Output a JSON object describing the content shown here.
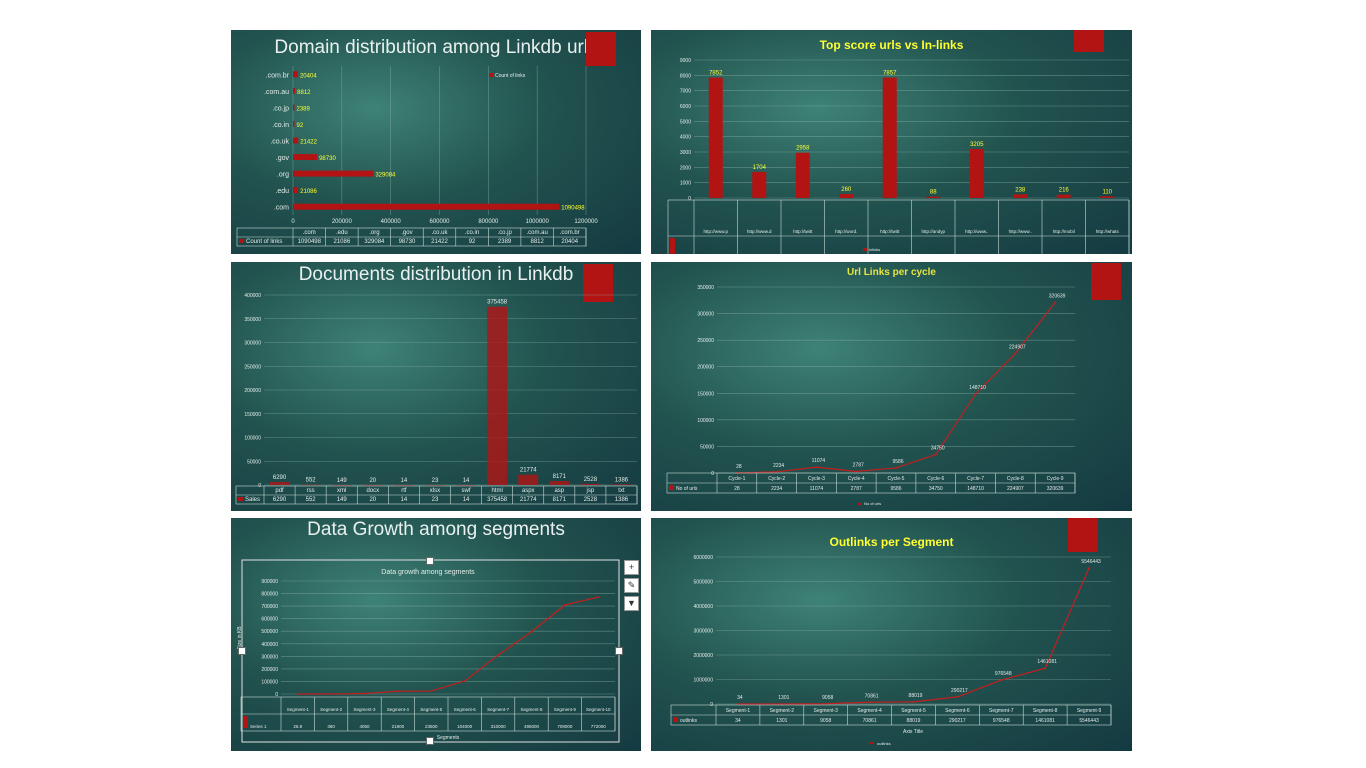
{
  "colors": {
    "bar": "#b21414",
    "label": "#ffff33",
    "text": "#e4ece9",
    "grid": "#8bb3ab"
  },
  "chart_data": [
    {
      "type": "bar",
      "orientation": "horizontal",
      "title": "Domain distribution among Linkdb urls",
      "categories": [
        ".com",
        ".edu",
        ".org",
        ".gov",
        ".co.uk",
        ".co.in",
        ".co.jp",
        ".com.au",
        ".com.br"
      ],
      "series": [
        {
          "name": "Count of links",
          "values": [
            1090498,
            21086,
            329084,
            98730,
            21422,
            92,
            2389,
            8812,
            20404
          ]
        }
      ],
      "data_labels": [
        "1090498",
        "21086",
        "329084",
        "98730",
        "21422",
        "92",
        "2389",
        "8812",
        "20404"
      ],
      "xlim": [
        0,
        1200000
      ],
      "ticks": [
        "0",
        "200000",
        "400000",
        "600000",
        "800000",
        "1000000",
        "1200000"
      ],
      "legend": "Count of links",
      "table_label": "Count of links"
    },
    {
      "type": "bar",
      "title": "Top score urls vs In-links",
      "categories": [
        "http://www.p...org/site/???",
        "http://www.dp...ress.org/",
        "http://twitter....com/",
        "http://word...press.org/",
        "http://twitter....com/share",
        "http://andyp...etting.com...om",
        "http://www....google.com...(lead)",
        "http://www....motiva&lo...op/",
        "http://mobile...theme.org/fo...heads/entries",
        "http://whats...stories.com/...(privacy)...html"
      ],
      "series": [
        {
          "name": "inlinks",
          "values": [
            7852,
            1704,
            2958,
            260,
            7857,
            88,
            3205,
            238,
            216,
            110
          ]
        }
      ],
      "data_labels": [
        "7852",
        "1704",
        "2958",
        "260",
        "7857",
        "88",
        "3205",
        "238",
        "216",
        "110"
      ],
      "ylim": [
        0,
        9000
      ],
      "ticks": [
        "0",
        "1000",
        "2000",
        "3000",
        "4000",
        "5000",
        "6000",
        "7000",
        "8000",
        "9000"
      ],
      "legend": "inlinks",
      "table_label": "inlinks"
    },
    {
      "type": "bar",
      "title": "Documents distribution in Linkdb",
      "categories": [
        "pdf",
        "rss",
        "xml",
        "docx",
        "rtf",
        "xlsx",
        "swf",
        "html",
        "aspx",
        "asp",
        "jsp",
        "txt"
      ],
      "series": [
        {
          "name": "Sales",
          "values": [
            6290,
            552,
            149,
            20,
            14,
            23,
            14,
            375458,
            21774,
            8171,
            2528,
            1386
          ]
        }
      ],
      "data_labels": [
        "6290",
        "552",
        "149",
        "20",
        "14",
        "23",
        "14",
        "375458",
        "21774",
        "8171",
        "2528",
        "1386"
      ],
      "ylim": [
        0,
        400000
      ],
      "ticks": [
        "0",
        "50000",
        "100000",
        "150000",
        "200000",
        "250000",
        "300000",
        "350000",
        "400000"
      ],
      "table_label": "Sales"
    },
    {
      "type": "line",
      "title": "Url Links per cycle",
      "categories": [
        "Cycle-1",
        "Cycle-2",
        "Cycle-3",
        "Cycle-4",
        "Cycle-5",
        "Cycle-6",
        "Cycle-7",
        "Cycle-8",
        "Cycle-9"
      ],
      "series": [
        {
          "name": "No of urls",
          "values": [
            28,
            2234,
            11074,
            2787,
            9586,
            34750,
            148710,
            224907,
            320639
          ]
        }
      ],
      "data_labels": [
        "28",
        "2234",
        "11074",
        "2787",
        "9586",
        "34750",
        "148710",
        "224907",
        "320639"
      ],
      "ylim": [
        0,
        350000
      ],
      "ticks": [
        "0",
        "50000",
        "100000",
        "150000",
        "200000",
        "250000",
        "300000",
        "350000"
      ],
      "legend": "No of urls",
      "table_label": "No of urls"
    },
    {
      "type": "line",
      "title": "Data Growth among segments",
      "subtitle": "Data growth among segments",
      "categories": [
        "Segment-1",
        "Segment-2",
        "Segment-3",
        "Segment-4",
        "Segment-5",
        "Segment-6",
        "Segment-7",
        "Segment-8",
        "Segment-9",
        "Segment-10"
      ],
      "series": [
        {
          "name": "Series 1",
          "values": [
            26.8,
            360,
            4050,
            21900,
            23500,
            104000,
            310000,
            496000,
            709000,
            772000
          ]
        }
      ],
      "table_values": [
        "26.8",
        "360",
        "4050",
        "21900",
        "23500",
        "104000",
        "310000",
        "496000",
        "709000",
        "772000"
      ],
      "ylim": [
        0,
        900000
      ],
      "ticks": [
        "0",
        "100000",
        "200000",
        "300000",
        "400000",
        "500000",
        "600000",
        "700000",
        "800000",
        "900000"
      ],
      "ylabel": "Size in KB",
      "xlabel": "Segments",
      "table_label": "Series 1"
    },
    {
      "type": "line",
      "title": "Outlinks per Segment",
      "categories": [
        "Segment-1",
        "Segment-2",
        "Segment-3",
        "Segment-4",
        "Segment-5",
        "Segment-6",
        "Segment-7",
        "Segment-8",
        "Segment-9"
      ],
      "series": [
        {
          "name": "outlinks",
          "values": [
            34,
            1301,
            9058,
            70861,
            88019,
            290217,
            976548,
            1461081,
            5546443
          ]
        }
      ],
      "data_labels": [
        "34",
        "1301",
        "9058",
        "70861",
        "88019",
        "290217",
        "976548",
        "1461081",
        "5546443"
      ],
      "ylim": [
        0,
        6000000
      ],
      "ticks": [
        "0",
        "1000000",
        "2000000",
        "3000000",
        "4000000",
        "5000000",
        "6000000"
      ],
      "xlabel": "Axis Title",
      "legend": "outlinks",
      "table_label": "outlinks"
    }
  ]
}
